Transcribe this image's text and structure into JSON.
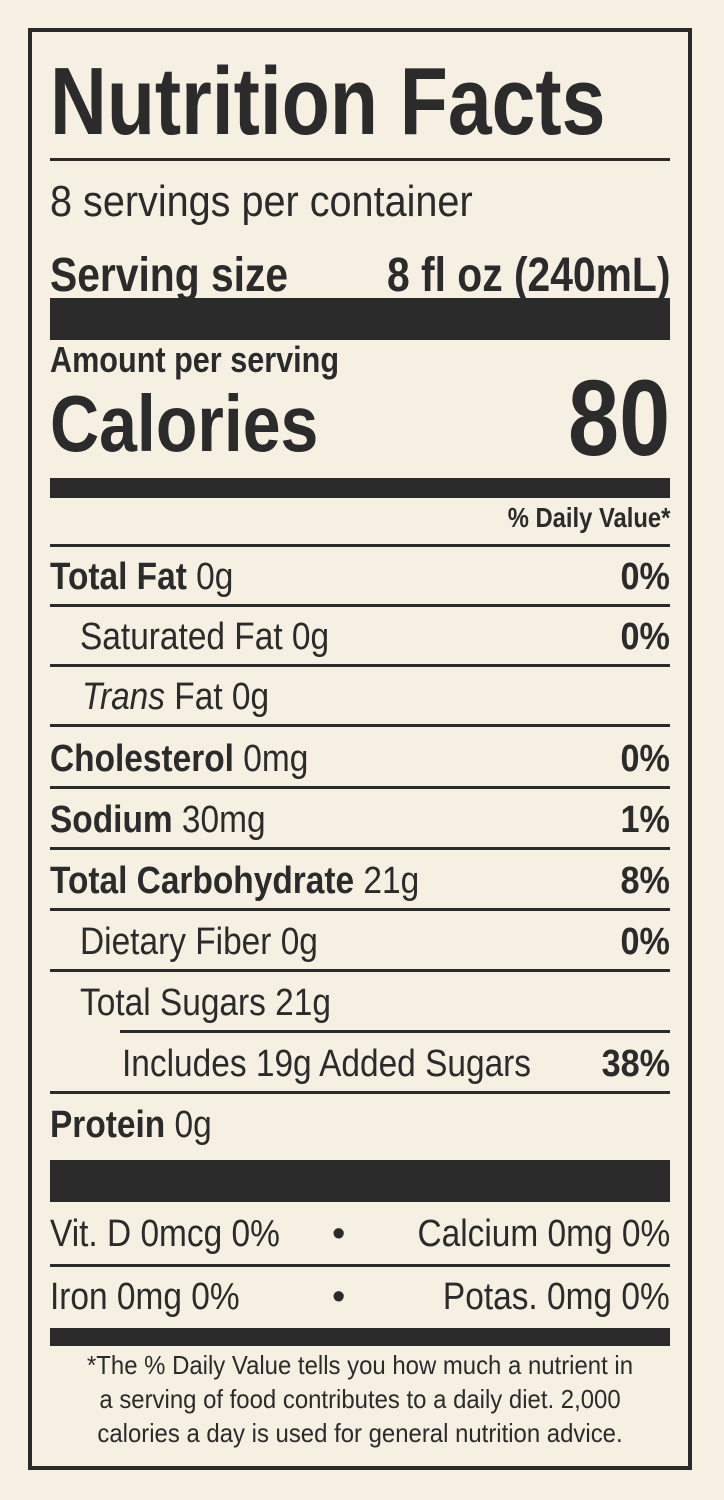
{
  "title": "Nutrition Facts",
  "servings_per_container": "8 servings per container",
  "serving_size": {
    "label": "Serving size",
    "value": "8 fl oz (240mL)"
  },
  "amount_per_serving": "Amount per serving",
  "calories": {
    "label": "Calories",
    "value": "80"
  },
  "daily_value_header": "% Daily Value*",
  "nutrients": [
    {
      "bold": "Total Fat",
      "rest": " 0g",
      "pct": "0%"
    },
    {
      "bold": "",
      "rest": "Saturated Fat 0g",
      "pct": "0%"
    },
    {
      "italic": "Trans",
      "rest": " Fat 0g",
      "pct": ""
    },
    {
      "bold": "Cholesterol",
      "rest": " 0mg",
      "pct": "0%"
    },
    {
      "bold": "Sodium",
      "rest": " 30mg",
      "pct": "1%"
    },
    {
      "bold": "Total Carbohydrate",
      "rest": " 21g",
      "pct": "8%"
    },
    {
      "bold": "",
      "rest": "Dietary Fiber 0g",
      "pct": "0%"
    },
    {
      "bold": "",
      "rest": "Total Sugars 21g",
      "pct": ""
    },
    {
      "bold": "",
      "rest": "Includes 19g Added Sugars",
      "pct": "38%"
    },
    {
      "bold": "Protein",
      "rest": " 0g",
      "pct": ""
    }
  ],
  "micronutrients": [
    {
      "left": "Vit. D 0mcg 0%",
      "separator": "•",
      "right": "Calcium 0mg 0%"
    },
    {
      "left": "Iron 0mg 0%",
      "separator": "•",
      "right": "Potas. 0mg 0%"
    }
  ],
  "footnote": {
    "line1": "*The % Daily Value tells you how much a nutrient in",
    "line2": "a serving of food contributes to a daily diet. 2,000",
    "line3": "calories a day is used for general nutrition advice."
  }
}
